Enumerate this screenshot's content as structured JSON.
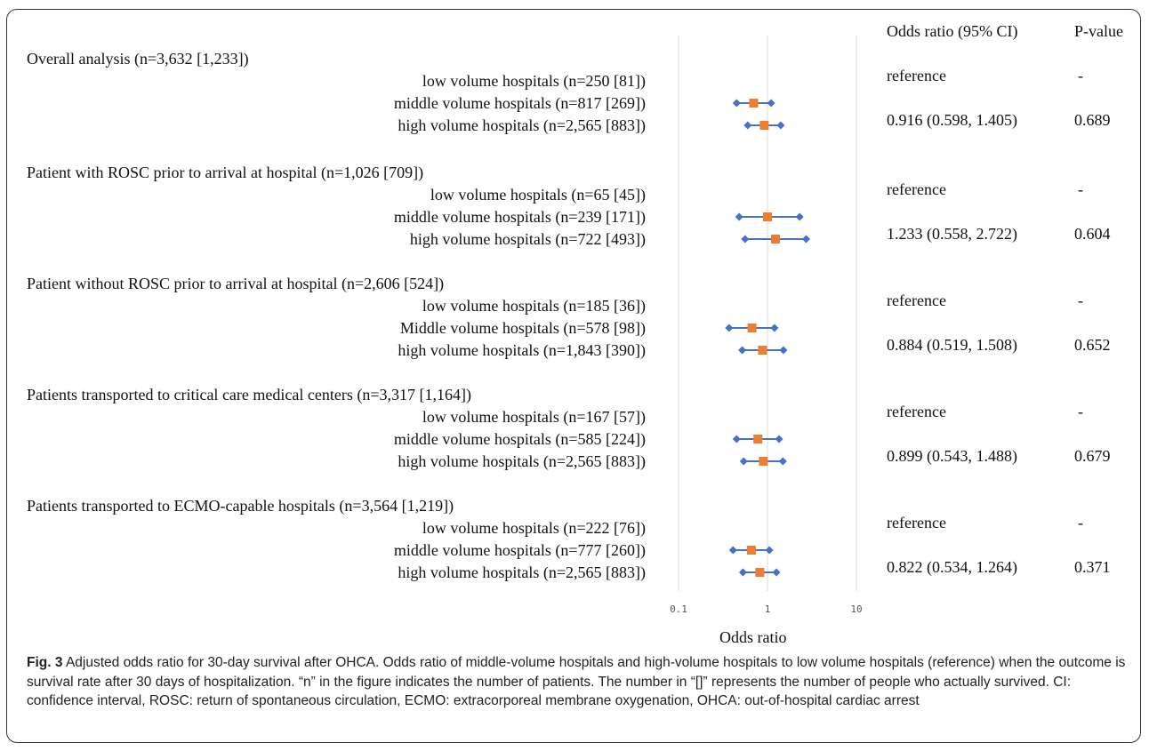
{
  "table": {
    "or_header": "Odds ratio (95% CI)",
    "p_header": "P-value"
  },
  "groups": [
    {
      "title": "Overall analysis (n=3,632 [1,233])",
      "rows": [
        "low volume hospitals (n=250 [81])",
        "middle volume hospitals (n=817 [269])",
        "high volume hospitals (n=2,565 [883])"
      ],
      "ref_text": "reference",
      "ref_p": "-",
      "or_text": "0.916 (0.598, 1.405)",
      "p_text": "0.689"
    },
    {
      "title": "Patient with ROSC prior to arrival at hospital (n=1,026 [709])",
      "rows": [
        "low volume hospitals (n=65 [45])",
        "middle volume hospitals (n=239 [171])",
        "high volume hospitals (n=722 [493])"
      ],
      "ref_text": "reference",
      "ref_p": "-",
      "or_text": "1.233 (0.558, 2.722)",
      "p_text": "0.604"
    },
    {
      "title": "Patient without ROSC prior to arrival at hospital (n=2,606 [524])",
      "rows": [
        "low volume hospitals (n=185 [36])",
        "Middle volume hospitals (n=578 [98])",
        "high volume hospitals (n=1,843 [390])"
      ],
      "ref_text": "reference",
      "ref_p": "-",
      "or_text": "0.884 (0.519, 1.508)",
      "p_text": "0.652"
    },
    {
      "title": "Patients transported to critical care medical centers (n=3,317 [1,164])",
      "rows": [
        "low volume hospitals (n=167 [57])",
        "middle volume hospitals (n=585 [224])",
        "high volume hospitals (n=2,565 [883])"
      ],
      "ref_text": "reference",
      "ref_p": "-",
      "or_text": "0.899 (0.543, 1.488)",
      "p_text": "0.679"
    },
    {
      "title": "Patients transported to ECMO-capable hospitals (n=3,564 [1,219])",
      "rows": [
        "low volume hospitals (n=222 [76])",
        "middle volume hospitals (n=777 [260])",
        "high volume hospitals (n=2,565 [883])"
      ],
      "ref_text": "reference",
      "ref_p": "-",
      "or_text": "0.822 (0.534, 1.264)",
      "p_text": "0.371"
    }
  ],
  "chart_data": {
    "type": "scatter",
    "xlabel": "Odds ratio",
    "x_scale": "log",
    "xlim": [
      0.1,
      10
    ],
    "x_ticks": [
      "0.1",
      "1",
      "10"
    ],
    "grid": "vertical line at 1",
    "colors": {
      "point": "#ED7D31",
      "ci": "#4472C4",
      "refline": "#D9D9D9"
    },
    "points": [
      {
        "group": 0,
        "row": 1,
        "or": 0.7,
        "lo": 0.45,
        "hi": 1.1
      },
      {
        "group": 0,
        "row": 2,
        "or": 0.92,
        "lo": 0.6,
        "hi": 1.41
      },
      {
        "group": 1,
        "row": 1,
        "or": 1.0,
        "lo": 0.48,
        "hi": 2.3
      },
      {
        "group": 1,
        "row": 2,
        "or": 1.23,
        "lo": 0.56,
        "hi": 2.72
      },
      {
        "group": 2,
        "row": 1,
        "or": 0.67,
        "lo": 0.37,
        "hi": 1.2
      },
      {
        "group": 2,
        "row": 2,
        "or": 0.88,
        "lo": 0.52,
        "hi": 1.51
      },
      {
        "group": 3,
        "row": 1,
        "or": 0.78,
        "lo": 0.45,
        "hi": 1.35
      },
      {
        "group": 3,
        "row": 2,
        "or": 0.9,
        "lo": 0.54,
        "hi": 1.49
      },
      {
        "group": 4,
        "row": 1,
        "or": 0.66,
        "lo": 0.41,
        "hi": 1.05
      },
      {
        "group": 4,
        "row": 2,
        "or": 0.82,
        "lo": 0.53,
        "hi": 1.26
      }
    ]
  },
  "caption": {
    "fig_label": "Fig. 3",
    "text": "Adjusted odds ratio for 30-day survival after OHCA. Odds ratio of middle-volume hospitals and high-volume hospitals to low volume hospitals (reference) when the outcome is survival rate after 30 days of hospitalization. “n” in the figure indicates the number of patients. The number in “[]” represents the number of people who actually survived. CI: confidence interval, ROSC: return of spontaneous circulation, ECMO: extracorporeal membrane oxygenation, OHCA: out-of-hospital cardiac arrest"
  }
}
